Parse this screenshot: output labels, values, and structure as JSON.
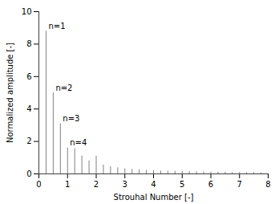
{
  "chart_data": {
    "type": "stem",
    "x": [
      0.25,
      0.5,
      0.75,
      1.0,
      1.25,
      1.5,
      1.75,
      2.0,
      2.25,
      2.5,
      2.75,
      3.0,
      3.25,
      3.5,
      3.75,
      4.0,
      4.25,
      4.5,
      4.75,
      5.0,
      5.25,
      5.5,
      5.75,
      6.0,
      6.25,
      6.5,
      6.75,
      7.0,
      7.25,
      7.5,
      7.75
    ],
    "values": [
      8.8,
      5.0,
      3.1,
      1.6,
      1.55,
      1.1,
      0.8,
      1.1,
      0.55,
      0.45,
      0.38,
      0.32,
      0.28,
      0.25,
      0.22,
      0.2,
      0.18,
      0.17,
      0.16,
      0.15,
      0.14,
      0.13,
      0.12,
      0.11,
      0.1,
      0.1,
      0.09,
      0.09,
      0.08,
      0.08,
      0.07
    ],
    "color": "#808080",
    "annotations": [
      {
        "text": "n=1",
        "x": 0.25,
        "y": 8.8
      },
      {
        "text": "n=2",
        "x": 0.5,
        "y": 5.0
      },
      {
        "text": "n=3",
        "x": 0.75,
        "y": 3.1
      },
      {
        "text": "n=4",
        "x": 1.0,
        "y": 1.6
      }
    ],
    "xlabel": "Strouhal Number [-]",
    "ylabel": "Normalized amplitude [-]",
    "xlim": [
      0,
      8
    ],
    "ylim": [
      0,
      10
    ],
    "xticks": [
      0,
      1,
      2,
      3,
      4,
      5,
      6,
      7,
      8
    ],
    "yticks": [
      0,
      2,
      4,
      6,
      8,
      10
    ],
    "grid": false
  }
}
